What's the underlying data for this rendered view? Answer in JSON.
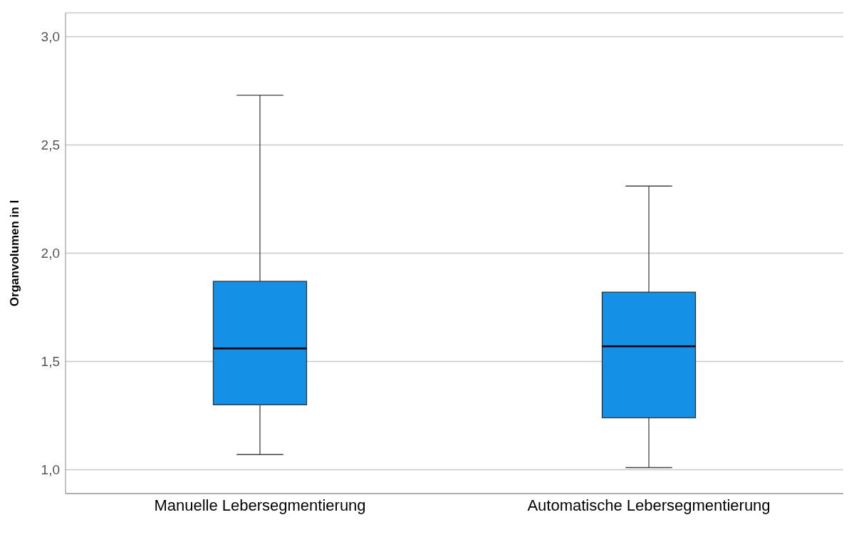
{
  "chart_data": {
    "type": "box",
    "ylabel": "Organvolumen in l",
    "categories": [
      "Manuelle Lebersegmentierung",
      "Automatische Lebersegmentierung"
    ],
    "color": "#1490e6",
    "boxes": [
      {
        "low": 1.07,
        "q1": 1.3,
        "median": 1.56,
        "q3": 1.87,
        "high": 2.73
      },
      {
        "low": 1.01,
        "q1": 1.24,
        "median": 1.57,
        "q3": 1.82,
        "high": 2.31
      }
    ],
    "ylim": [
      0.89,
      3.11
    ],
    "yticks": [
      {
        "value": 1.0,
        "label": "1,0"
      },
      {
        "value": 1.5,
        "label": "1,5"
      },
      {
        "value": 2.0,
        "label": "2,0"
      },
      {
        "value": 2.5,
        "label": "2,5"
      },
      {
        "value": 3.0,
        "label": "3,0"
      }
    ],
    "grid": "y"
  }
}
